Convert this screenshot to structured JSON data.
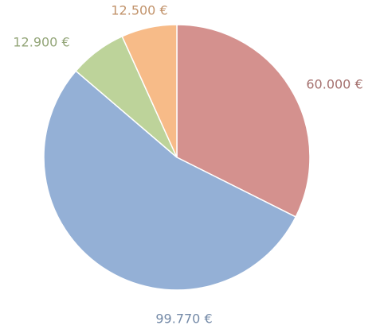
{
  "chart_data": {
    "type": "pie",
    "categories": [
      null,
      null,
      null,
      null
    ],
    "values": [
      60000,
      99770,
      12900,
      12500
    ],
    "value_labels": [
      "60.000 €",
      "99.770 €",
      "12.900 €",
      "12.500 €"
    ],
    "colors": [
      "#d4918e",
      "#94b0d6",
      "#bdd39a",
      "#f7bb88"
    ]
  }
}
